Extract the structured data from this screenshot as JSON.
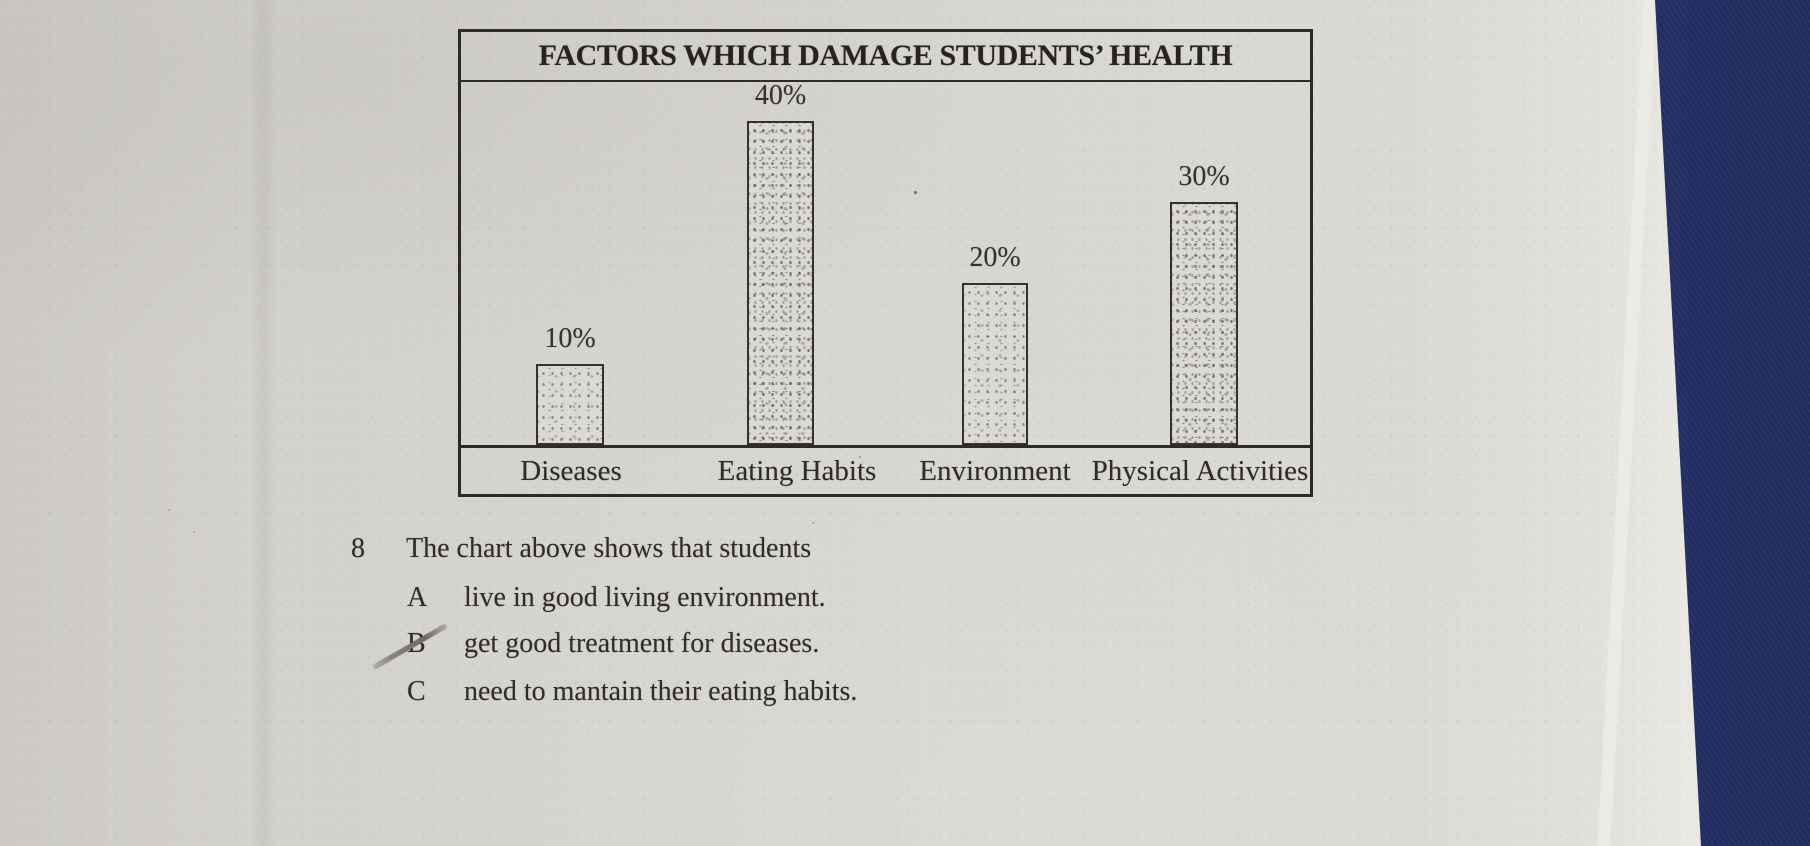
{
  "colors": {
    "paper": "#d5d3cf",
    "ink": "#2f2c27",
    "fabric_blue": "#2c3b79",
    "pencil_mark": "#7e7a72",
    "bar_fill": "#dbd9d4"
  },
  "chart": {
    "title": "FACTORS WHICH DAMAGE STUDENTS’ HEALTH",
    "bars": [
      {
        "label": "Diseases",
        "value": 10,
        "value_label": "10%"
      },
      {
        "label": "Eating Habits",
        "value": 40,
        "value_label": "40%"
      },
      {
        "label": "Environment",
        "value": 20,
        "value_label": "20%"
      },
      {
        "label": "Physical Activities",
        "value": 30,
        "value_label": "30%"
      }
    ]
  },
  "chart_data": {
    "type": "bar",
    "title": "FACTORS WHICH DAMAGE STUDENTS’ HEALTH",
    "categories": [
      "Diseases",
      "Eating Habits",
      "Environment",
      "Physical Activities"
    ],
    "values": [
      10,
      40,
      20,
      30
    ],
    "unit": "%",
    "data_labels": [
      "10%",
      "40%",
      "20%",
      "30%"
    ],
    "xlabel": "",
    "ylabel": "",
    "ylim": [
      0,
      45
    ],
    "grid": false,
    "legend": false,
    "bar_style": "stippled gray fill with dark outline, value labels above bars, category labels in band below axis"
  },
  "question": {
    "number": "8",
    "stem": "The chart above shows that students",
    "options": [
      {
        "letter": "A",
        "text": "live in good living environment."
      },
      {
        "letter": "B",
        "text": "get good treatment for diseases."
      },
      {
        "letter": "C",
        "text": "need to mantain their eating habits."
      }
    ],
    "annotation": {
      "type": "pencil slash",
      "through_option": "B"
    }
  }
}
